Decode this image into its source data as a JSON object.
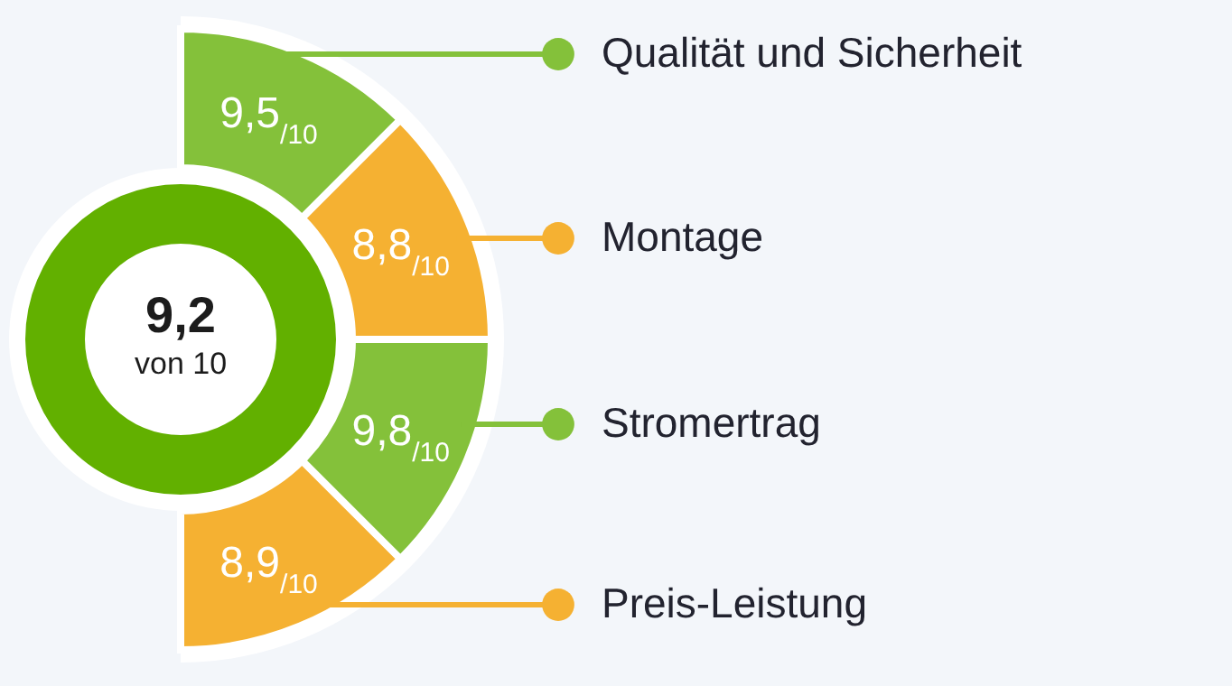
{
  "chart_data": {
    "type": "other",
    "categories": [
      "Qualität und Sicherheit",
      "Montage",
      "Stromertrag",
      "Preis-Leistung"
    ],
    "values": [
      9.5,
      8.8,
      9.8,
      8.9
    ],
    "value_labels": [
      "9,5$_{/10}$",
      "8,8$_{/10}$",
      "9,8$_{/10}$",
      "8,9$_{/10}$"
    ],
    "colors": [
      "#84c13a",
      "#f5b132",
      "#84c13a",
      "#f5b132"
    ],
    "annotations": [
      "9,2",
      "von 10"
    ]
  }
}
